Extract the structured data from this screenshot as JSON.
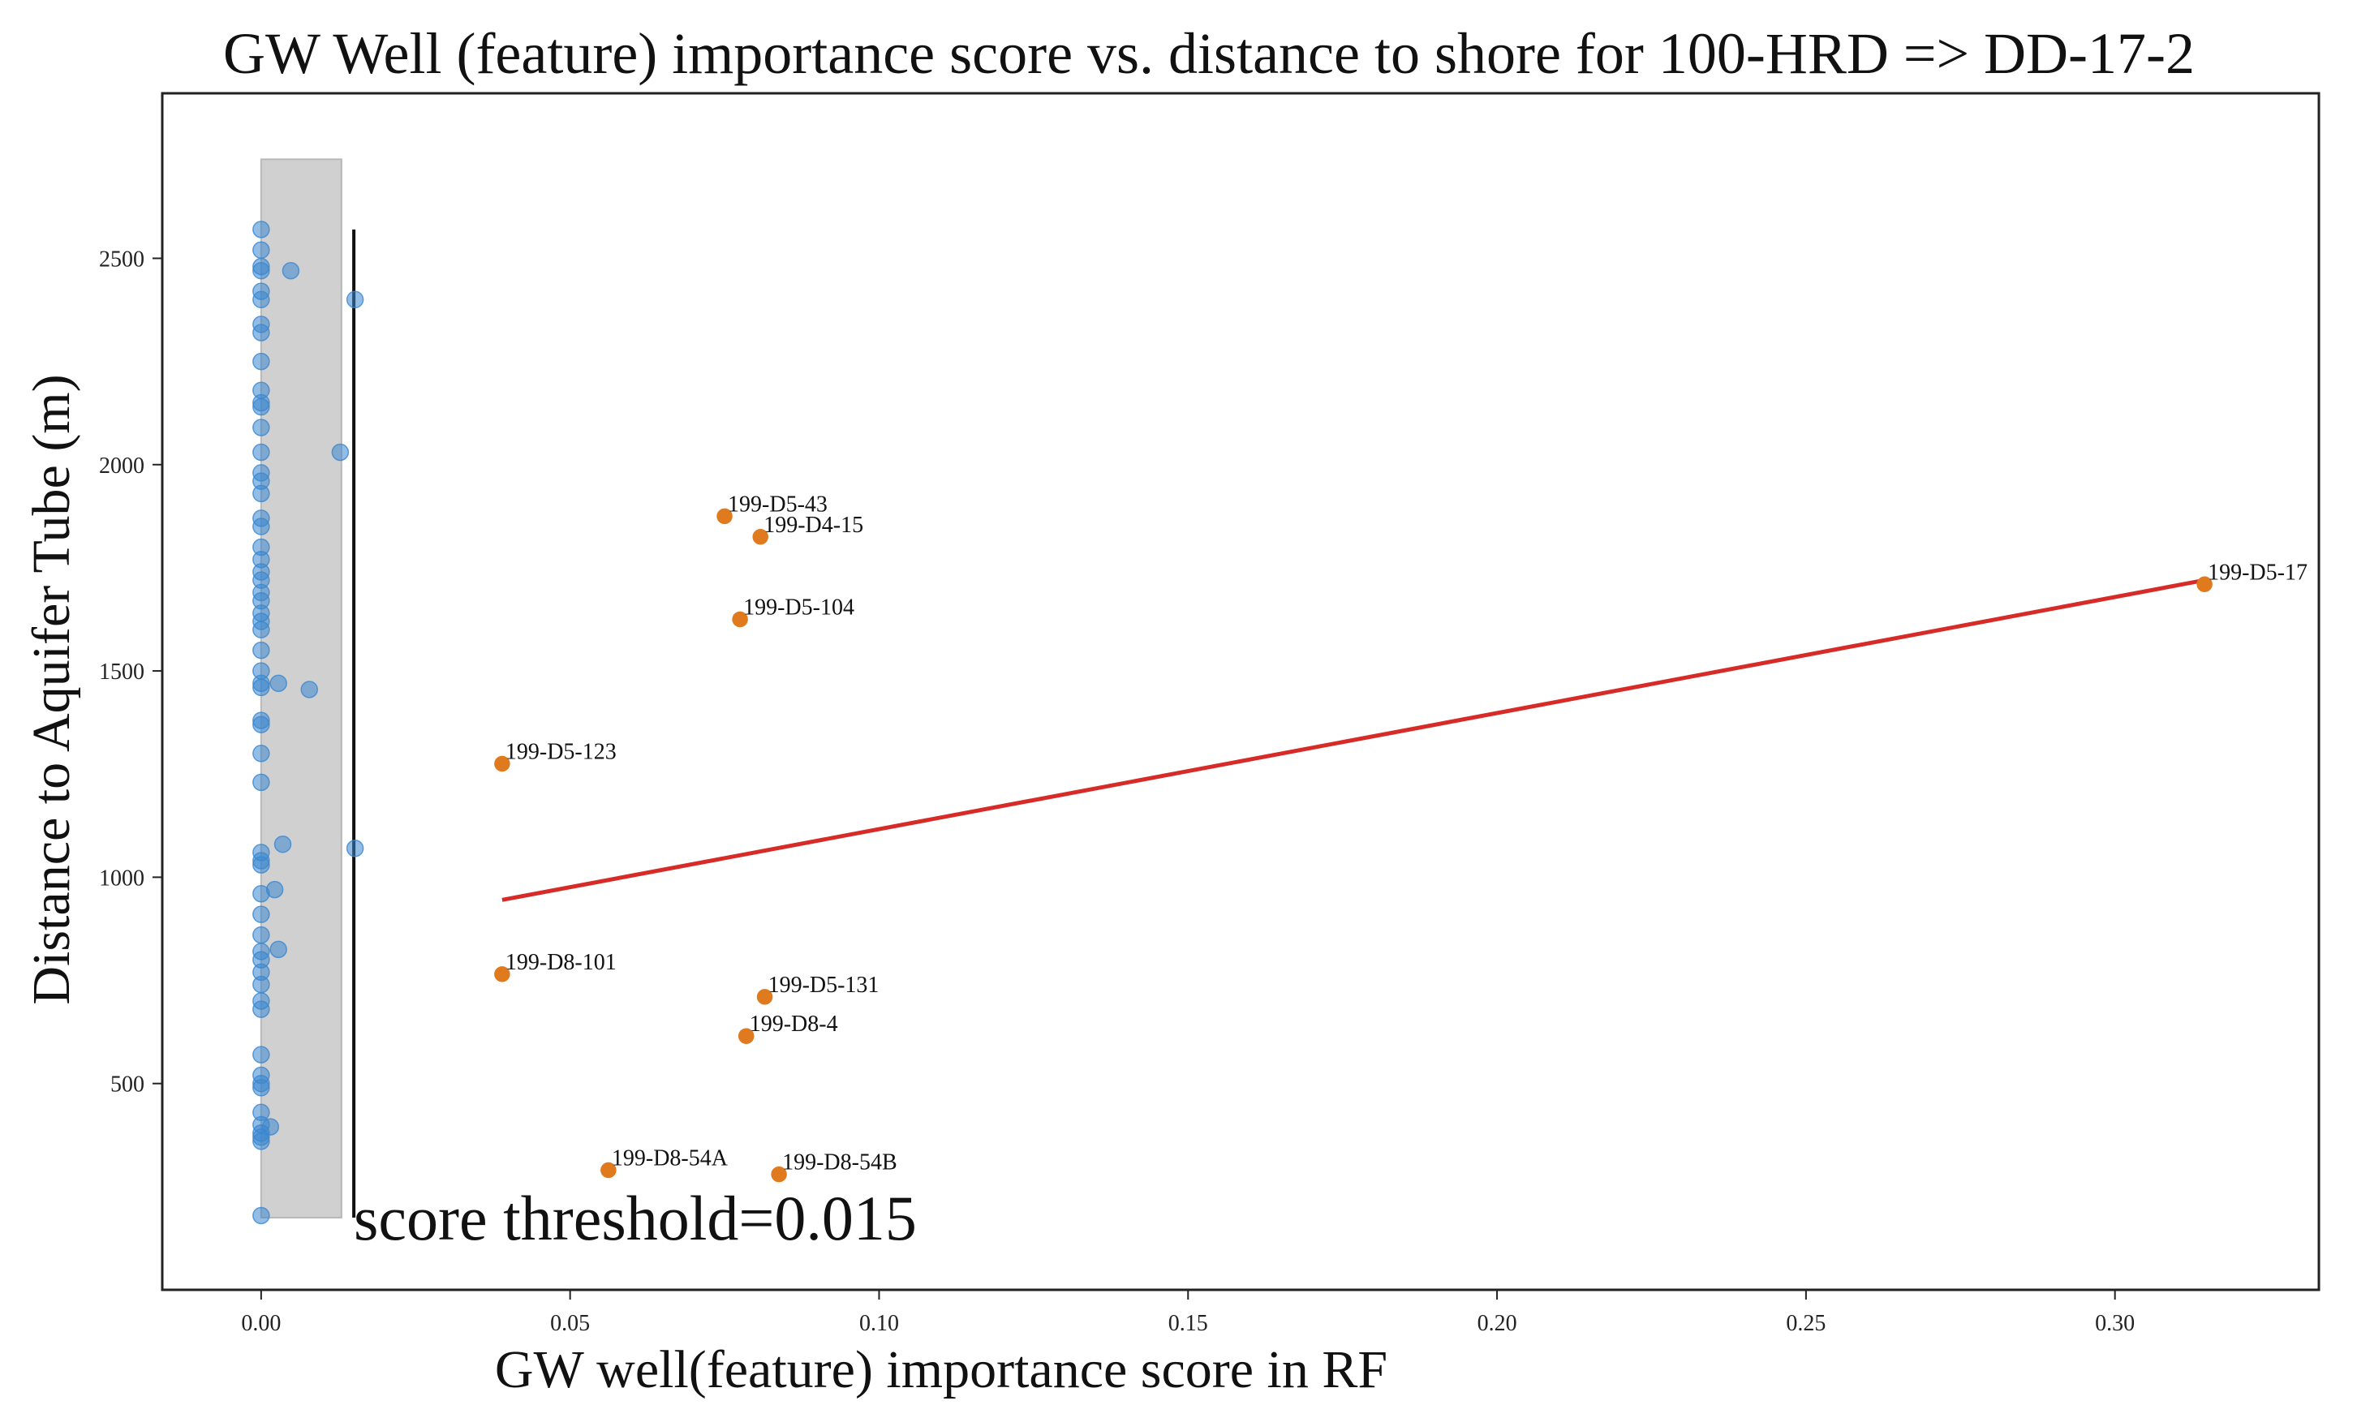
{
  "chart_data": {
    "type": "scatter",
    "title": "GW Well (feature) importance score vs. distance to shore for 100-HRD => DD-17-2",
    "xlabel": "GW well(feature) importance score in RF",
    "ylabel": "Distance to Aquifer Tube (m)",
    "xlim": [
      -0.016,
      0.333
    ],
    "ylim": [
      0,
      2900
    ],
    "x_ticks": [
      0.0,
      0.05,
      0.1,
      0.15,
      0.2,
      0.25,
      0.3
    ],
    "x_tick_labels": [
      "0.00",
      "0.05",
      "0.10",
      "0.15",
      "0.20",
      "0.25",
      "0.30"
    ],
    "y_ticks": [
      500,
      1000,
      1500,
      2000,
      2500
    ],
    "y_tick_labels": [
      "500",
      "1000",
      "1500",
      "2000",
      "2500"
    ],
    "grid": false,
    "threshold": {
      "x": 0.015,
      "label": "score threshold=0.015",
      "region_x": [
        0.0,
        0.013
      ],
      "region_y": [
        175,
        2740
      ],
      "line_y": [
        175,
        2570
      ]
    },
    "series": [
      {
        "role": "below-threshold",
        "color": "#3a87cf",
        "points": [
          {
            "x": 0.0,
            "y": 2570
          },
          {
            "x": 0.0,
            "y": 2520
          },
          {
            "x": 0.0,
            "y": 2480
          },
          {
            "x": 0.0,
            "y": 2470
          },
          {
            "x": 0.0,
            "y": 2420
          },
          {
            "x": 0.0,
            "y": 2400
          },
          {
            "x": 0.0,
            "y": 2340
          },
          {
            "x": 0.0,
            "y": 2320
          },
          {
            "x": 0.0,
            "y": 2250
          },
          {
            "x": 0.0,
            "y": 2180
          },
          {
            "x": 0.0,
            "y": 2150
          },
          {
            "x": 0.0,
            "y": 2140
          },
          {
            "x": 0.0,
            "y": 2090
          },
          {
            "x": 0.0,
            "y": 2030
          },
          {
            "x": 0.0,
            "y": 1980
          },
          {
            "x": 0.0,
            "y": 1960
          },
          {
            "x": 0.0,
            "y": 1930
          },
          {
            "x": 0.0,
            "y": 1870
          },
          {
            "x": 0.0,
            "y": 1850
          },
          {
            "x": 0.0,
            "y": 1800
          },
          {
            "x": 0.0,
            "y": 1770
          },
          {
            "x": 0.0,
            "y": 1740
          },
          {
            "x": 0.0,
            "y": 1720
          },
          {
            "x": 0.0,
            "y": 1690
          },
          {
            "x": 0.0,
            "y": 1670
          },
          {
            "x": 0.0,
            "y": 1640
          },
          {
            "x": 0.0,
            "y": 1620
          },
          {
            "x": 0.0,
            "y": 1600
          },
          {
            "x": 0.0,
            "y": 1550
          },
          {
            "x": 0.0,
            "y": 1500
          },
          {
            "x": 0.0,
            "y": 1470
          },
          {
            "x": 0.0,
            "y": 1460
          },
          {
            "x": 0.0,
            "y": 1380
          },
          {
            "x": 0.0,
            "y": 1370
          },
          {
            "x": 0.0,
            "y": 1300
          },
          {
            "x": 0.0,
            "y": 1230
          },
          {
            "x": 0.0,
            "y": 1060
          },
          {
            "x": 0.0,
            "y": 1040
          },
          {
            "x": 0.0,
            "y": 1030
          },
          {
            "x": 0.0,
            "y": 960
          },
          {
            "x": 0.0,
            "y": 910
          },
          {
            "x": 0.0,
            "y": 860
          },
          {
            "x": 0.0,
            "y": 820
          },
          {
            "x": 0.0,
            "y": 800
          },
          {
            "x": 0.0,
            "y": 770
          },
          {
            "x": 0.0,
            "y": 740
          },
          {
            "x": 0.0,
            "y": 700
          },
          {
            "x": 0.0,
            "y": 680
          },
          {
            "x": 0.0,
            "y": 570
          },
          {
            "x": 0.0,
            "y": 520
          },
          {
            "x": 0.0,
            "y": 500
          },
          {
            "x": 0.0,
            "y": 490
          },
          {
            "x": 0.0,
            "y": 430
          },
          {
            "x": 0.0,
            "y": 400
          },
          {
            "x": 0.0,
            "y": 380
          },
          {
            "x": 0.0,
            "y": 370
          },
          {
            "x": 0.0,
            "y": 360
          },
          {
            "x": 0.0,
            "y": 180
          },
          {
            "x": 0.0048,
            "y": 2470
          },
          {
            "x": 0.0152,
            "y": 2400
          },
          {
            "x": 0.0128,
            "y": 2030
          },
          {
            "x": 0.0078,
            "y": 1455
          },
          {
            "x": 0.0028,
            "y": 1470
          },
          {
            "x": 0.0152,
            "y": 1070
          },
          {
            "x": 0.0035,
            "y": 1080
          },
          {
            "x": 0.0022,
            "y": 970
          },
          {
            "x": 0.0028,
            "y": 825
          },
          {
            "x": 0.0015,
            "y": 395
          }
        ]
      },
      {
        "role": "labeled-wells",
        "color": "#e07a1f",
        "points": [
          {
            "x": 0.075,
            "y": 1875,
            "label": "199-D5-43"
          },
          {
            "x": 0.0808,
            "y": 1825,
            "label": "199-D4-15"
          },
          {
            "x": 0.0775,
            "y": 1625,
            "label": "199-D5-104"
          },
          {
            "x": 0.3145,
            "y": 1710,
            "label": "199-D5-17"
          },
          {
            "x": 0.039,
            "y": 1275,
            "label": "199-D5-123"
          },
          {
            "x": 0.039,
            "y": 765,
            "label": "199-D8-101"
          },
          {
            "x": 0.0815,
            "y": 710,
            "label": "199-D5-131"
          },
          {
            "x": 0.0785,
            "y": 615,
            "label": "199-D8-4"
          },
          {
            "x": 0.0562,
            "y": 290,
            "label": "199-D8-54A"
          },
          {
            "x": 0.0838,
            "y": 280,
            "label": "199-D8-54B"
          }
        ]
      }
    ],
    "trend_line": {
      "color": "#d62b27",
      "x": [
        0.039,
        0.3145
      ],
      "y": [
        945,
        1720
      ]
    }
  }
}
